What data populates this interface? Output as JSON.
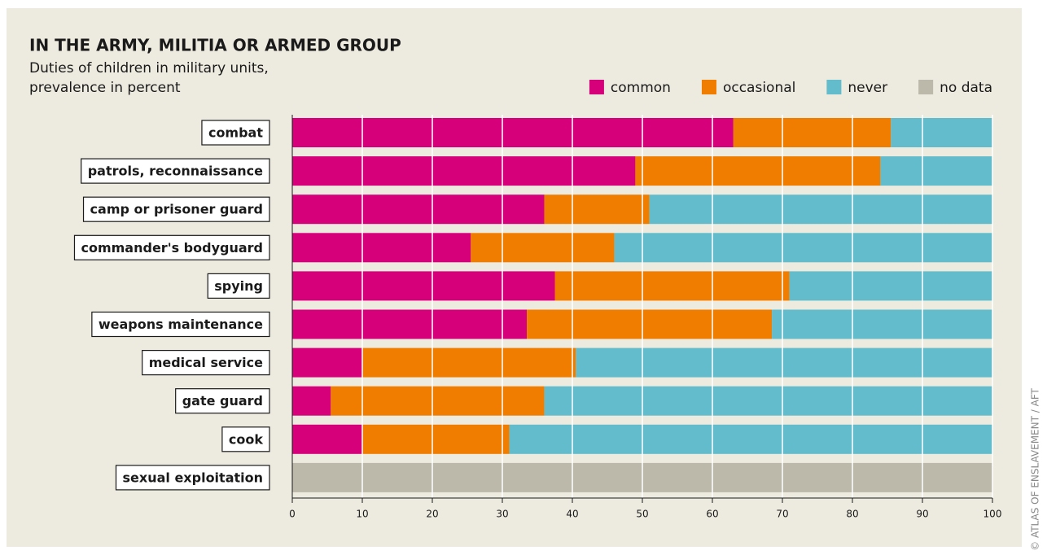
{
  "chart_data": {
    "type": "stacked-bar-horizontal",
    "title": "IN THE ARMY, MILITIA OR ARMED GROUP",
    "subtitle": [
      "Duties of children in military units,",
      "prevalence in percent"
    ],
    "credit": "© ATLAS OF ENSLAVEMENT / AFT",
    "categories": [
      "combat",
      "patrols, reconnaissance",
      "camp or prisoner guard",
      "commander's bodyguard",
      "spying",
      "weapons maintenance",
      "medical service",
      "gate guard",
      "cook",
      "sexual exploitation"
    ],
    "series": [
      {
        "name": "common",
        "color": "#d6007a",
        "values": [
          63,
          49,
          36,
          25.5,
          37.5,
          33.5,
          10,
          5.5,
          10,
          null
        ]
      },
      {
        "name": "occasional",
        "color": "#f07d00",
        "values": [
          22.5,
          35,
          15,
          20.5,
          33.5,
          35,
          30.5,
          30.5,
          21,
          null
        ]
      },
      {
        "name": "never",
        "color": "#62bccb",
        "values": [
          14.5,
          16,
          49,
          54,
          29,
          31.5,
          59.5,
          64,
          69,
          null
        ]
      },
      {
        "name": "no data",
        "color": "#bcb9ab",
        "values": [
          null,
          null,
          null,
          null,
          null,
          null,
          null,
          null,
          null,
          100
        ]
      }
    ],
    "xlim": [
      0,
      100
    ],
    "xticks": [
      0,
      10,
      20,
      30,
      40,
      50,
      60,
      70,
      80,
      90,
      100
    ],
    "grid": true,
    "legend": "top-right"
  }
}
